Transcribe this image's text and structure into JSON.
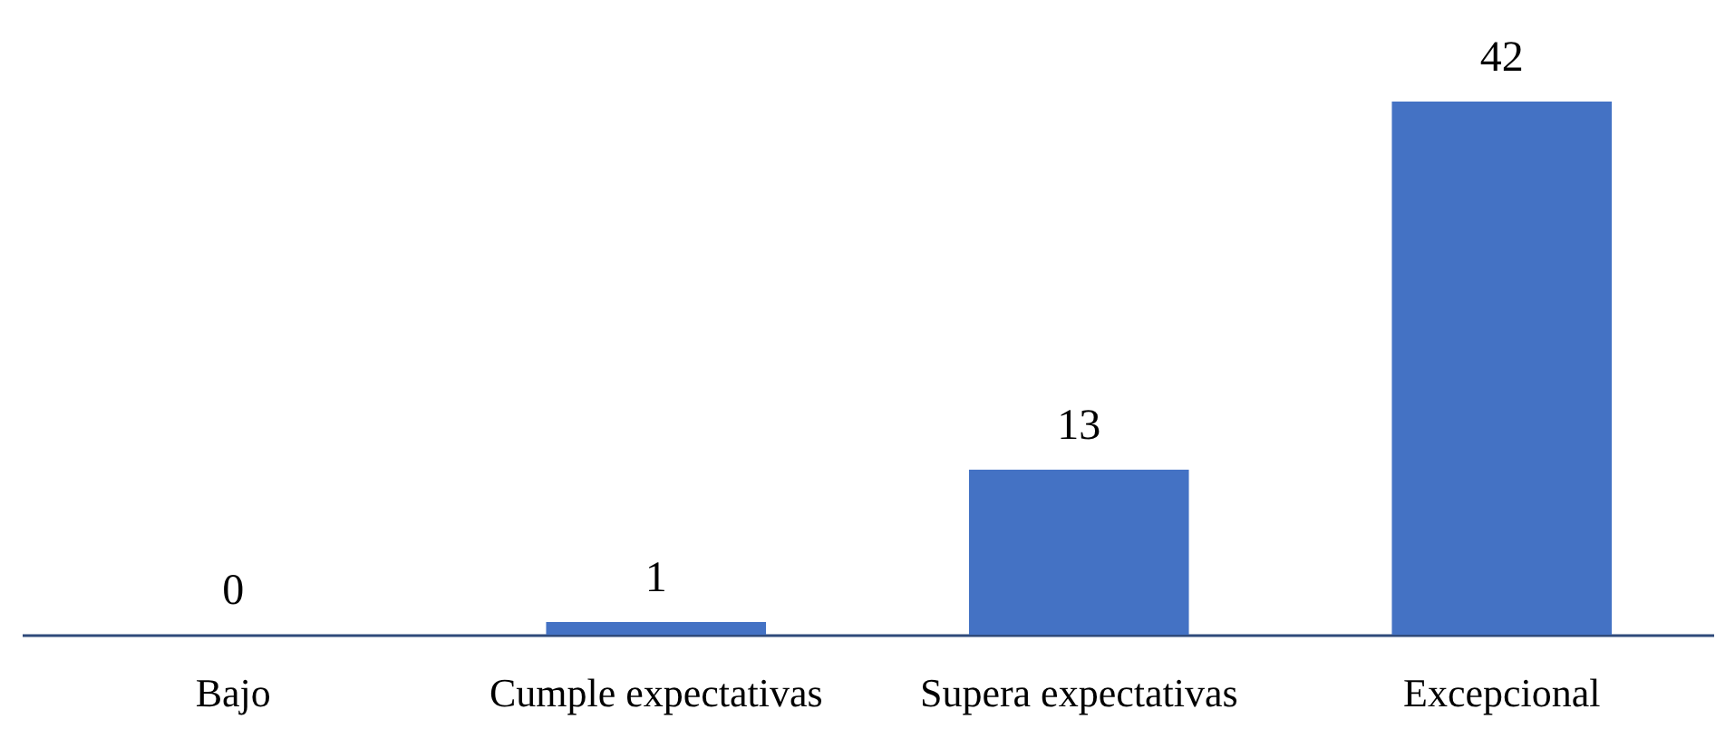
{
  "chart_data": {
    "type": "bar",
    "categories": [
      "Bajo",
      "Cumple expectativas",
      "Supera expectativas",
      "Excepcional"
    ],
    "values": [
      0,
      1,
      13,
      42
    ],
    "color": "#4472c4",
    "data_labels": true
  }
}
